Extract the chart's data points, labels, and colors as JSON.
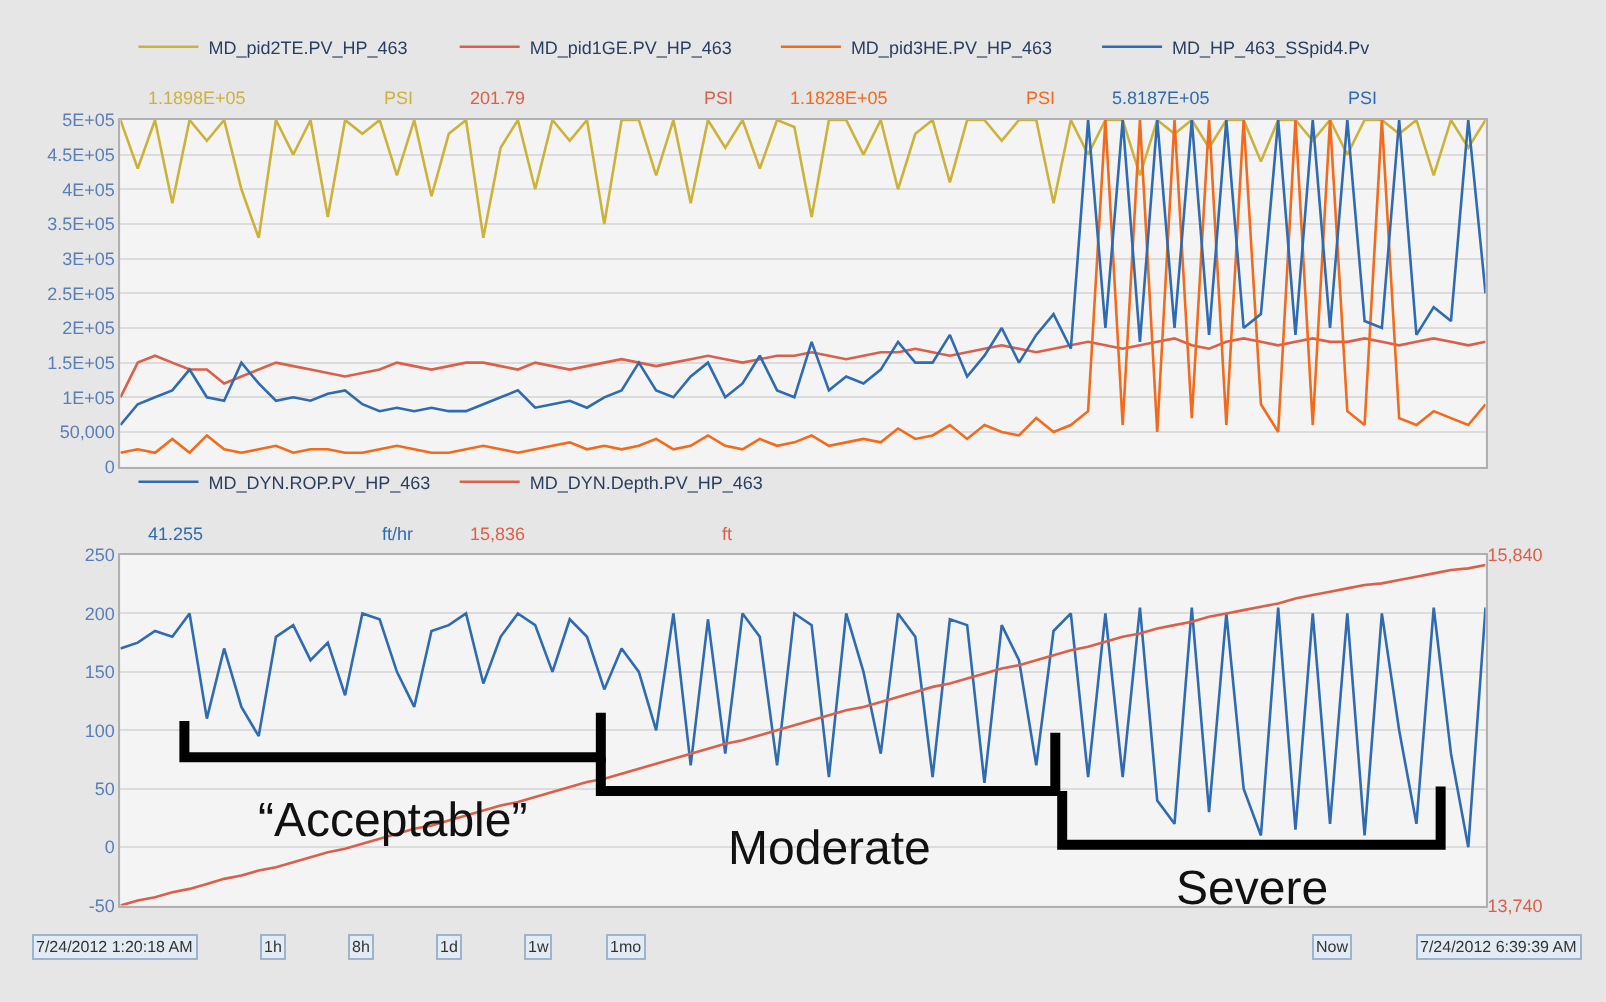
{
  "chart_data": [
    {
      "type": "line",
      "ylim": [
        0,
        500000
      ],
      "yticks": [
        0,
        {
          "value": 50000,
          "label": "50,000"
        },
        {
          "value": 100000,
          "label": "1E+05"
        },
        {
          "value": 150000,
          "label": "1.5E+05"
        },
        {
          "value": 200000,
          "label": "2E+05"
        },
        {
          "value": 250000,
          "label": "2.5E+05"
        },
        {
          "value": 300000,
          "label": "3E+05"
        },
        {
          "value": 350000,
          "label": "3.5E+05"
        },
        {
          "value": 400000,
          "label": "4E+05"
        },
        {
          "value": 450000,
          "label": "4.5E+05"
        },
        {
          "value": 500000,
          "label": "5E+05"
        }
      ],
      "grid": "y",
      "legend": "top left",
      "tick_labels": "y",
      "categories": [
        null,
        null,
        null,
        null,
        null,
        null,
        null,
        null,
        null,
        null,
        null,
        null,
        null,
        null,
        null,
        null,
        null,
        null,
        null,
        null,
        null,
        null,
        null,
        null,
        null,
        null,
        null,
        null,
        null,
        null,
        null,
        null,
        null,
        null,
        null,
        null,
        null,
        null,
        null,
        null,
        null,
        null,
        null,
        null,
        null,
        null,
        null,
        null,
        null,
        null,
        null,
        null,
        null,
        null,
        null,
        null,
        null,
        null,
        null,
        null,
        null,
        null,
        null,
        null,
        null,
        null,
        null,
        null,
        null,
        null,
        null,
        null,
        null,
        null,
        null,
        null,
        null,
        null,
        null,
        null
      ],
      "series": [
        {
          "name": "MD_pid2TE.PV_HP_463",
          "color": "#cdb23a",
          "values": [
            500000,
            430000,
            500000,
            380000,
            500000,
            470000,
            500000,
            400000,
            330000,
            500000,
            450000,
            500000,
            360000,
            500000,
            480000,
            500000,
            420000,
            500000,
            390000,
            480000,
            500000,
            330000,
            460000,
            500000,
            400000,
            500000,
            470000,
            500000,
            350000,
            500000,
            500000,
            420000,
            500000,
            380000,
            500000,
            460000,
            500000,
            430000,
            500000,
            490000,
            360000,
            500000,
            500000,
            450000,
            500000,
            400000,
            480000,
            500000,
            410000,
            500000,
            500000,
            470000,
            500000,
            500000,
            380000,
            500000,
            450000,
            500000,
            500000,
            420000,
            500000,
            480000,
            500000,
            460000,
            500000,
            500000,
            440000,
            500000,
            500000,
            470000,
            500000,
            450000,
            500000,
            500000,
            480000,
            500000,
            420000,
            500000,
            460000,
            500000
          ]
        },
        {
          "name": "MD_pid1GE.PV_HP_463",
          "color": "#d9604a",
          "values": [
            100000,
            150000,
            160000,
            150000,
            140000,
            140000,
            120000,
            130000,
            140000,
            150000,
            145000,
            140000,
            135000,
            130000,
            135000,
            140000,
            150000,
            145000,
            140000,
            145000,
            150000,
            150000,
            145000,
            140000,
            150000,
            145000,
            140000,
            145000,
            150000,
            155000,
            150000,
            145000,
            150000,
            155000,
            160000,
            155000,
            150000,
            155000,
            160000,
            160000,
            165000,
            160000,
            155000,
            160000,
            165000,
            165000,
            170000,
            165000,
            160000,
            165000,
            170000,
            175000,
            170000,
            165000,
            170000,
            175000,
            180000,
            175000,
            170000,
            175000,
            180000,
            185000,
            175000,
            170000,
            180000,
            185000,
            180000,
            175000,
            180000,
            185000,
            180000,
            180000,
            185000,
            180000,
            175000,
            180000,
            185000,
            180000,
            175000,
            180000
          ]
        },
        {
          "name": "MD_pid3HE.PV_HP_463",
          "color": "#f26a1b",
          "values": [
            20000,
            25000,
            20000,
            40000,
            20000,
            45000,
            25000,
            20000,
            25000,
            30000,
            20000,
            25000,
            25000,
            20000,
            20000,
            25000,
            30000,
            25000,
            20000,
            20000,
            25000,
            30000,
            25000,
            20000,
            25000,
            30000,
            35000,
            25000,
            30000,
            25000,
            30000,
            40000,
            25000,
            30000,
            45000,
            30000,
            25000,
            40000,
            30000,
            35000,
            45000,
            30000,
            35000,
            40000,
            35000,
            55000,
            40000,
            45000,
            60000,
            40000,
            60000,
            50000,
            45000,
            70000,
            50000,
            60000,
            80000,
            500000,
            60000,
            500000,
            50000,
            500000,
            70000,
            500000,
            60000,
            500000,
            90000,
            50000,
            500000,
            60000,
            500000,
            80000,
            60000,
            500000,
            70000,
            60000,
            80000,
            70000,
            60000,
            90000
          ]
        },
        {
          "name": "MD_HP_463_SSpid4.Pv",
          "color": "#2e6bb0",
          "values": [
            60000,
            90000,
            100000,
            110000,
            140000,
            100000,
            95000,
            150000,
            120000,
            95000,
            100000,
            95000,
            105000,
            110000,
            90000,
            80000,
            85000,
            80000,
            85000,
            80000,
            80000,
            90000,
            100000,
            110000,
            85000,
            90000,
            95000,
            85000,
            100000,
            110000,
            150000,
            110000,
            100000,
            130000,
            150000,
            100000,
            120000,
            160000,
            110000,
            100000,
            180000,
            110000,
            130000,
            120000,
            140000,
            180000,
            150000,
            150000,
            190000,
            130000,
            160000,
            200000,
            150000,
            190000,
            220000,
            170000,
            500000,
            200000,
            500000,
            180000,
            500000,
            200000,
            500000,
            190000,
            500000,
            200000,
            220000,
            500000,
            190000,
            500000,
            200000,
            500000,
            210000,
            200000,
            500000,
            190000,
            230000,
            210000,
            500000,
            250000
          ]
        }
      ],
      "annotations": [
        "1.1898E+05",
        "PSI",
        "201.79",
        "PSI",
        "1.1828E+05",
        "PSI",
        "5.8187E+05",
        "PSI"
      ]
    },
    {
      "type": "line",
      "ylim": [
        -50,
        250
      ],
      "yticks": [
        -50,
        0,
        50,
        100,
        150,
        200,
        250
      ],
      "y2lim": [
        13740,
        15840
      ],
      "y2ticks": [
        {
          "value": 13740,
          "label": "13,740"
        },
        {
          "value": 15840,
          "label": "15,840"
        }
      ],
      "grid": "y",
      "legend": "top left",
      "tick_labels": "y",
      "categories": [
        null,
        null,
        null,
        null,
        null,
        null,
        null,
        null,
        null,
        null,
        null,
        null,
        null,
        null,
        null,
        null,
        null,
        null,
        null,
        null,
        null,
        null,
        null,
        null,
        null,
        null,
        null,
        null,
        null,
        null,
        null,
        null,
        null,
        null,
        null,
        null,
        null,
        null,
        null,
        null,
        null,
        null,
        null,
        null,
        null,
        null,
        null,
        null,
        null,
        null,
        null,
        null,
        null,
        null,
        null,
        null,
        null,
        null,
        null,
        null,
        null,
        null,
        null,
        null,
        null,
        null,
        null,
        null,
        null,
        null,
        null,
        null,
        null,
        null,
        null,
        null,
        null,
        null,
        null,
        null
      ],
      "series": [
        {
          "name": "MD_DYN.ROP.PV_HP_463",
          "color": "#2e6bb0",
          "values": [
            170,
            175,
            185,
            180,
            200,
            110,
            170,
            120,
            95,
            180,
            190,
            160,
            175,
            130,
            200,
            195,
            150,
            120,
            185,
            190,
            200,
            140,
            180,
            200,
            190,
            150,
            195,
            180,
            135,
            170,
            150,
            100,
            200,
            70,
            195,
            80,
            200,
            180,
            70,
            200,
            190,
            60,
            200,
            150,
            80,
            200,
            180,
            60,
            195,
            190,
            55,
            190,
            160,
            70,
            185,
            200,
            60,
            200,
            60,
            205,
            40,
            20,
            205,
            30,
            200,
            50,
            10,
            205,
            15,
            200,
            20,
            200,
            10,
            200,
            100,
            20,
            205,
            80,
            0,
            205
          ]
        },
        {
          "name": "MD_DYN.Depth.PV_HP_463",
          "color": "#d9604a",
          "axis": "y2",
          "values": [
            13740,
            13770,
            13790,
            13820,
            13840,
            13870,
            13900,
            13920,
            13950,
            13970,
            14000,
            14030,
            14060,
            14080,
            14110,
            14140,
            14170,
            14200,
            14220,
            14250,
            14280,
            14310,
            14340,
            14360,
            14390,
            14420,
            14450,
            14480,
            14500,
            14530,
            14560,
            14590,
            14620,
            14650,
            14680,
            14710,
            14730,
            14760,
            14790,
            14820,
            14850,
            14880,
            14910,
            14930,
            14960,
            14990,
            15020,
            15050,
            15070,
            15100,
            15130,
            15160,
            15180,
            15210,
            15240,
            15270,
            15290,
            15320,
            15350,
            15370,
            15400,
            15420,
            15440,
            15470,
            15490,
            15510,
            15530,
            15550,
            15580,
            15600,
            15620,
            15640,
            15660,
            15670,
            15690,
            15710,
            15730,
            15750,
            15760,
            15780
          ]
        }
      ],
      "annotations": [
        "41.255",
        "ft/hr",
        "15,836",
        "ft",
        "“Acceptable”",
        "Moderate",
        "Severe",
        "7/24/2012 1:20:18 AM",
        "1h",
        "8h",
        "1d",
        "1w",
        "1mo",
        "Now",
        "7/24/2012 6:39:39 AM"
      ]
    }
  ]
}
